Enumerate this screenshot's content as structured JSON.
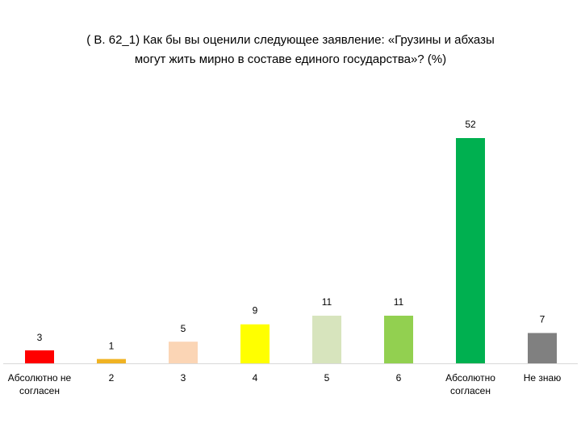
{
  "chart_data": {
    "type": "bar",
    "title_lines": [
      "( В. 62_1)  Как бы вы оценили следующее заявление: «Грузины и абхазы",
      "могут жить мирно в составе единого государства»? (%)"
    ],
    "categories": [
      [
        "Абсолютно не",
        "согласен"
      ],
      [
        "2"
      ],
      [
        "3"
      ],
      [
        "4"
      ],
      [
        "5"
      ],
      [
        "6"
      ],
      [
        "Абсолютно",
        "согласен"
      ],
      [
        "Не знаю"
      ]
    ],
    "values": [
      3,
      1,
      5,
      9,
      11,
      11,
      52,
      7
    ],
    "value_labels": [
      "3",
      "1",
      "5",
      "9",
      "11",
      "11",
      "52",
      "7"
    ],
    "colors": [
      "#ff0000",
      "#f0b323",
      "#fbd5b5",
      "#ffff00",
      "#d7e4bd",
      "#92d050",
      "#00b050",
      "#808080"
    ],
    "ylim": [
      0,
      52
    ],
    "grid": false,
    "legend": "none"
  }
}
